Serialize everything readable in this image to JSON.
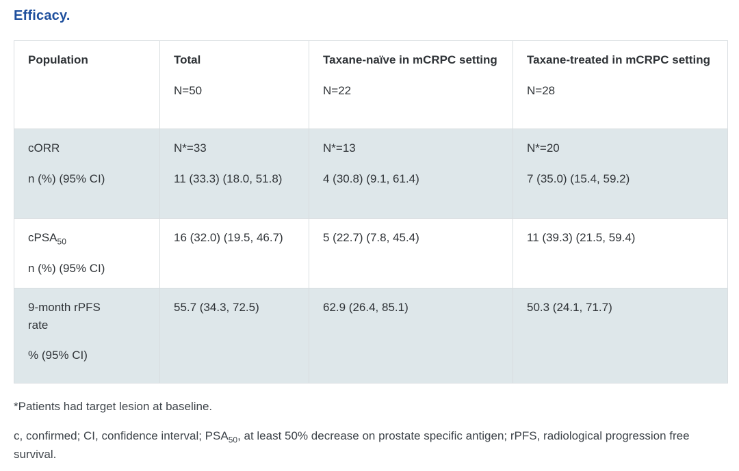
{
  "title": "Efficacy.",
  "colors": {
    "title_blue": "#1e4f9d",
    "row_shade": "#dee7ea",
    "table_border": "#d8dde0",
    "body_text": "#2f3337",
    "footnote_text": "#3e444a"
  },
  "table": {
    "header": [
      {
        "label": "Population",
        "n": ""
      },
      {
        "label": "Total",
        "n": "N=50"
      },
      {
        "label": "Taxane-naïve in mCRPC setting",
        "n": "N=22"
      },
      {
        "label": "Taxane-treated in mCRPC setting",
        "n": "N=28"
      }
    ],
    "rows": [
      {
        "metric": "cORR",
        "metric_sub": "",
        "unit": "n (%) (95% CI)",
        "total": [
          "N*=33",
          "11 (33.3) (18.0, 51.8)"
        ],
        "naive": [
          "N*=13",
          "4 (30.8) (9.1, 61.4)"
        ],
        "treated": [
          "N*=20",
          "7 (35.0) (15.4, 59.2)"
        ]
      },
      {
        "metric": "cPSA",
        "metric_sub": "50",
        "unit": "n (%) (95% CI)",
        "total": [
          "16 (32.0) (19.5, 46.7)"
        ],
        "naive": [
          "5 (22.7) (7.8, 45.4)"
        ],
        "treated": [
          "11 (39.3) (21.5, 59.4)"
        ]
      },
      {
        "metric": "9-month rPFS rate",
        "metric_sub": "",
        "unit": "% (95% CI)",
        "total": [
          "55.7 (34.3, 72.5)"
        ],
        "naive": [
          "62.9 (26.4, 85.1)"
        ],
        "treated": [
          "50.3 (24.1, 71.7)"
        ]
      }
    ]
  },
  "footnotes": {
    "line1": "*Patients had target lesion at baseline.",
    "line2_pre": "c, confirmed; CI, confidence interval; PSA",
    "line2_sub": "50",
    "line2_post": ", at least 50% decrease on prostate specific antigen; rPFS, radiological progression free survival."
  }
}
